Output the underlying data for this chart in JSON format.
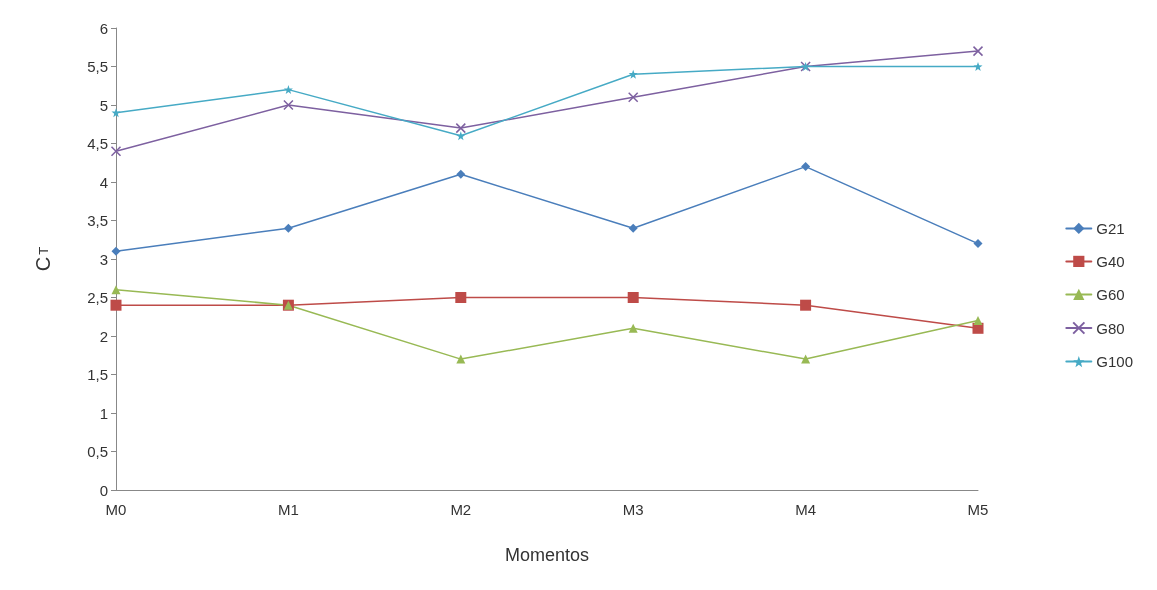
{
  "chart_data": {
    "type": "line",
    "xlabel": "Momentos",
    "ylabel": "C$_{T}$",
    "categories": [
      "M0",
      "M1",
      "M2",
      "M3",
      "M4",
      "M5"
    ],
    "series": [
      {
        "name": "G21",
        "color": "#4a7ebb",
        "marker": "diamond",
        "values": [
          3.1,
          3.4,
          4.1,
          3.4,
          4.2,
          3.2
        ]
      },
      {
        "name": "G40",
        "color": "#be4b48",
        "marker": "square",
        "values": [
          2.4,
          2.4,
          2.5,
          2.5,
          2.4,
          2.1
        ]
      },
      {
        "name": "G60",
        "color": "#98b954",
        "marker": "triangle",
        "values": [
          2.6,
          2.4,
          1.7,
          2.1,
          1.7,
          2.2
        ]
      },
      {
        "name": "G80",
        "color": "#7d60a0",
        "marker": "cross",
        "values": [
          4.4,
          5.0,
          4.7,
          5.1,
          5.5,
          5.7
        ]
      },
      {
        "name": "G100",
        "color": "#46aac5",
        "marker": "star",
        "values": [
          4.9,
          5.2,
          4.6,
          5.4,
          5.5,
          5.5
        ]
      }
    ],
    "ylim": [
      0,
      6
    ],
    "yticks": [
      0,
      {
        "value": 0.5,
        "label": "0,5"
      },
      1,
      {
        "value": 1.5,
        "label": "1,5"
      },
      2,
      {
        "value": 2.5,
        "label": "2,5"
      },
      3,
      {
        "value": 3.5,
        "label": "3,5"
      },
      4,
      {
        "value": 4.5,
        "label": "4,5"
      },
      5,
      {
        "value": 5.5,
        "label": "5,5"
      },
      6
    ],
    "grid": false,
    "legend": "right",
    "line_style": "solid"
  }
}
